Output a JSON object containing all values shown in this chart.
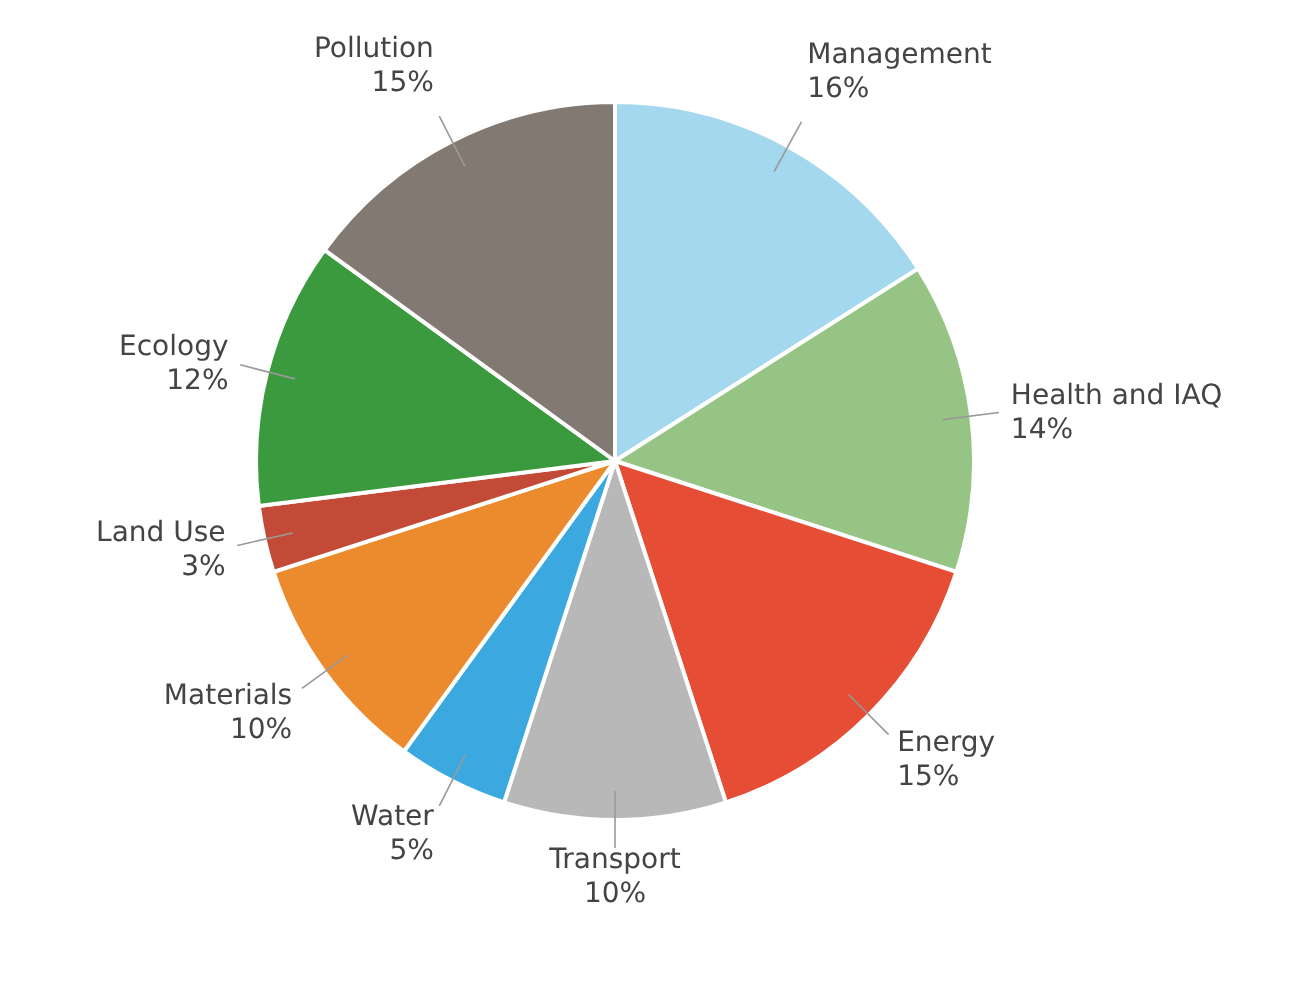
{
  "chart_data": {
    "type": "pie",
    "categories": [
      "Management",
      "Health and IAQ",
      "Energy",
      "Transport",
      "Water",
      "Materials",
      "Land Use",
      "Ecology",
      "Pollution"
    ],
    "values": [
      16,
      14,
      15,
      10,
      5,
      10,
      3,
      12,
      15
    ],
    "colors": [
      "#a3d8ee",
      "#95c485",
      "#e54d35",
      "#b8b8b8",
      "#3ba9e0",
      "#ec8a2e",
      "#c24a36",
      "#3b9a3e",
      "#827a72"
    ],
    "value_labels": [
      "16%",
      "14%",
      "15%",
      "10%",
      "5%",
      "10%",
      "3%",
      "12%",
      "15%"
    ],
    "legend": false
  }
}
